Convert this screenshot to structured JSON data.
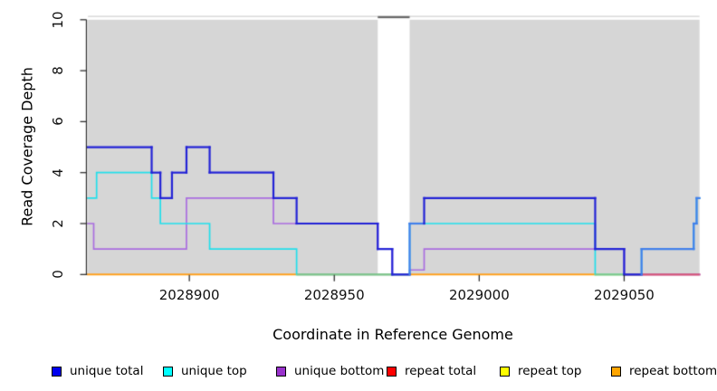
{
  "chart_data": {
    "type": "line",
    "subtype": "step-coverage",
    "title": "",
    "xlabel": "Coordinate in Reference Genome",
    "ylabel": "Read Coverage Depth",
    "xlim": [
      2028865,
      2029076
    ],
    "ylim": [
      0,
      10
    ],
    "x_ticks": [
      2028900,
      2028950,
      2029000,
      2029050
    ],
    "y_ticks": [
      0,
      2,
      4,
      6,
      8,
      10
    ],
    "grid": false,
    "legend_position": "bottom",
    "plot_bg_color": "#ffffff",
    "band_color": "#d6d6d6",
    "background_bands": [
      {
        "x1": 2028865,
        "x2": 2028965
      },
      {
        "x1": 2028976,
        "x2": 2029076
      }
    ],
    "gap_region": {
      "x1": 2028965,
      "x2": 2028976,
      "top_marker_color": "#686868",
      "top_line_color": "#d0d0d0"
    },
    "axis_color": "#2f2f2f",
    "series": [
      {
        "name": "repeat bottom",
        "color": "#ffa01e",
        "width": 2.0,
        "points": [
          [
            2028865,
            0
          ],
          [
            2029040,
            0
          ]
        ]
      },
      {
        "name": "repeat top",
        "color": "#f0e800",
        "width": 1.7,
        "points": [
          [
            2029040,
            0
          ],
          [
            2029050,
            0
          ]
        ]
      },
      {
        "name": "repeat total",
        "color": "#dd2020",
        "width": 1.7,
        "points": [
          [
            2029050,
            0
          ],
          [
            2029076,
            0
          ]
        ]
      },
      {
        "name": "unique bottom",
        "color": "#aa6ee0",
        "width": 1.7,
        "points": [
          [
            2028865,
            2
          ],
          [
            2028867,
            2
          ],
          [
            2028867,
            1
          ],
          [
            2028899,
            1
          ],
          [
            2028899,
            3
          ],
          [
            2028929,
            3
          ],
          [
            2028929,
            2
          ],
          [
            2028965,
            2
          ],
          [
            2028965,
            1
          ],
          [
            2028970,
            1
          ],
          [
            2028970,
            0
          ],
          [
            2028976,
            0
          ],
          [
            2028976,
            0.18
          ],
          [
            2028981,
            0.18
          ],
          [
            2028981,
            1
          ],
          [
            2029050,
            1
          ],
          [
            2029050,
            0
          ],
          [
            2029076,
            0
          ]
        ]
      },
      {
        "name": "unique top",
        "color": "#22dfeb",
        "width": 1.7,
        "points": [
          [
            2028865,
            3
          ],
          [
            2028868,
            3
          ],
          [
            2028868,
            4
          ],
          [
            2028887,
            4
          ],
          [
            2028887,
            3
          ],
          [
            2028890,
            3
          ],
          [
            2028890,
            2
          ],
          [
            2028907,
            2
          ],
          [
            2028907,
            1
          ],
          [
            2028937,
            1
          ],
          [
            2028937,
            0
          ],
          [
            2028976,
            0
          ],
          [
            2028976,
            2
          ],
          [
            2029040,
            2
          ],
          [
            2029040,
            0
          ],
          [
            2029056,
            0
          ],
          [
            2029056,
            1
          ],
          [
            2029074,
            1
          ],
          [
            2029074,
            2
          ],
          [
            2029075,
            2
          ],
          [
            2029075,
            3
          ],
          [
            2029076,
            3
          ]
        ]
      },
      {
        "name": "unique total",
        "color": "#2323d6",
        "light_color": "#4280ea",
        "light_ranges": [
          [
            2028976,
            2028981
          ],
          [
            2029056,
            2029076
          ]
        ],
        "width": 2.2,
        "points": [
          [
            2028865,
            5
          ],
          [
            2028887,
            5
          ],
          [
            2028887,
            4
          ],
          [
            2028890,
            4
          ],
          [
            2028890,
            3
          ],
          [
            2028894,
            3
          ],
          [
            2028894,
            4
          ],
          [
            2028899,
            4
          ],
          [
            2028899,
            5
          ],
          [
            2028907,
            5
          ],
          [
            2028907,
            4
          ],
          [
            2028929,
            4
          ],
          [
            2028929,
            3
          ],
          [
            2028937,
            3
          ],
          [
            2028937,
            2
          ],
          [
            2028965,
            2
          ],
          [
            2028965,
            1
          ],
          [
            2028970,
            1
          ],
          [
            2028970,
            0
          ],
          [
            2028976,
            0
          ],
          [
            2028976,
            2
          ],
          [
            2028981,
            2
          ],
          [
            2028981,
            3
          ],
          [
            2029040,
            3
          ],
          [
            2029040,
            1
          ],
          [
            2029050,
            1
          ],
          [
            2029050,
            0
          ],
          [
            2029056,
            0
          ],
          [
            2029056,
            1
          ],
          [
            2029074,
            1
          ],
          [
            2029074,
            2
          ],
          [
            2029075,
            2
          ],
          [
            2029075,
            3
          ],
          [
            2029076,
            3
          ]
        ]
      }
    ],
    "overlap_blend_segments": [
      {
        "x1": 2028937,
        "x2": 2028976,
        "y": 0,
        "color": "#80c48c",
        "note": "unique-top over repeat-bottom"
      },
      {
        "x1": 2029040,
        "x2": 2029056,
        "y": 0,
        "color": "#80c48c",
        "note": "unique-top over repeat-top"
      },
      {
        "x1": 2029050,
        "x2": 2029076,
        "y": 0,
        "color": "#d65677",
        "note": "repeat-total over unique-bottom"
      }
    ],
    "legend": [
      {
        "label": "unique total",
        "color": "#0000ee"
      },
      {
        "label": "unique top",
        "color": "#00ffff"
      },
      {
        "label": "unique bottom",
        "color": "#9932cc"
      },
      {
        "label": "repeat total",
        "color": "#ff0000"
      },
      {
        "label": "repeat top",
        "color": "#ffff00"
      },
      {
        "label": "repeat bottom",
        "color": "#ffa500"
      }
    ]
  }
}
